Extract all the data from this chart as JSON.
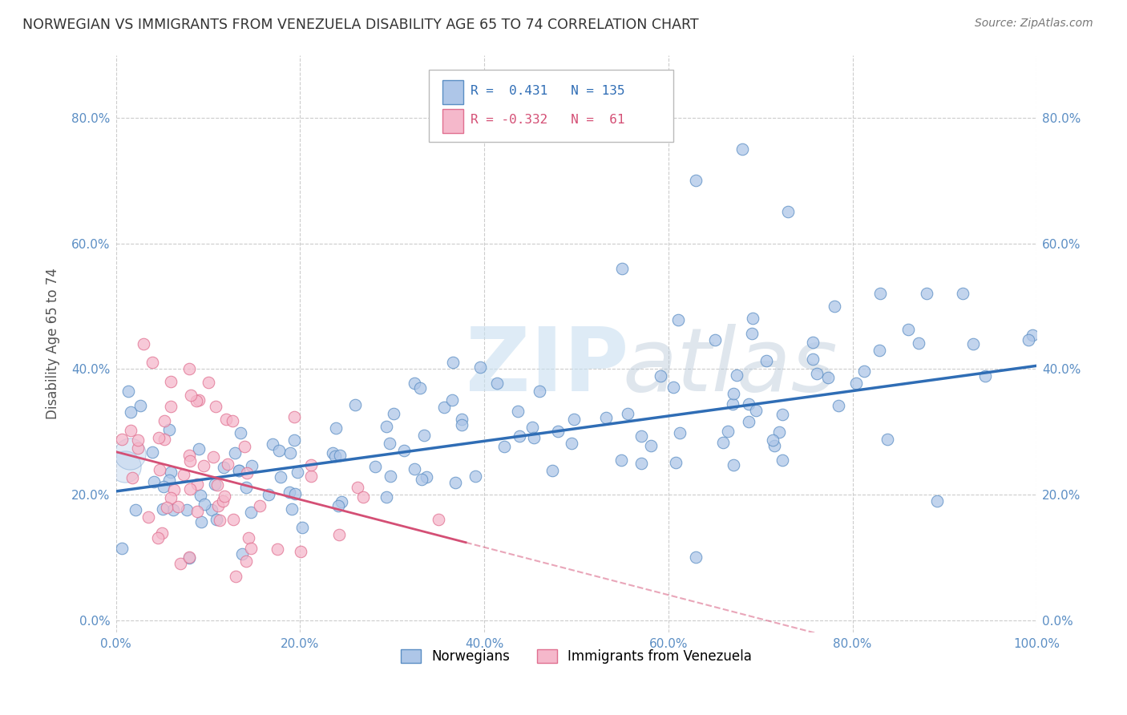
{
  "title": "NORWEGIAN VS IMMIGRANTS FROM VENEZUELA DISABILITY AGE 65 TO 74 CORRELATION CHART",
  "source": "Source: ZipAtlas.com",
  "ylabel": "Disability Age 65 to 74",
  "xlim": [
    0.0,
    1.0
  ],
  "ylim": [
    -0.02,
    0.9
  ],
  "yticks": [
    0.0,
    0.2,
    0.4,
    0.6,
    0.8
  ],
  "ytick_labels": [
    "0.0%",
    "20.0%",
    "40.0%",
    "60.0%",
    "80.0%"
  ],
  "xticks": [
    0.0,
    0.2,
    0.4,
    0.6,
    0.8,
    1.0
  ],
  "xtick_labels": [
    "0.0%",
    "20.0%",
    "40.0%",
    "60.0%",
    "80.0%",
    "100.0%"
  ],
  "norwegian_R": 0.431,
  "norwegian_N": 135,
  "venezuela_R": -0.332,
  "venezuela_N": 61,
  "blue_color": "#aec6e8",
  "blue_edge_color": "#5b8ec4",
  "blue_line_color": "#2f6db5",
  "pink_color": "#f5b8cb",
  "pink_edge_color": "#e07090",
  "pink_line_color": "#d44f75",
  "watermark_color": "#d8e8f5",
  "legend_label_norwegian": "Norwegians",
  "legend_label_venezuela": "Immigrants from Venezuela",
  "background_color": "#ffffff",
  "grid_color": "#cccccc",
  "tick_color": "#5b8ec4",
  "title_color": "#333333",
  "source_color": "#777777",
  "ylabel_color": "#555555"
}
